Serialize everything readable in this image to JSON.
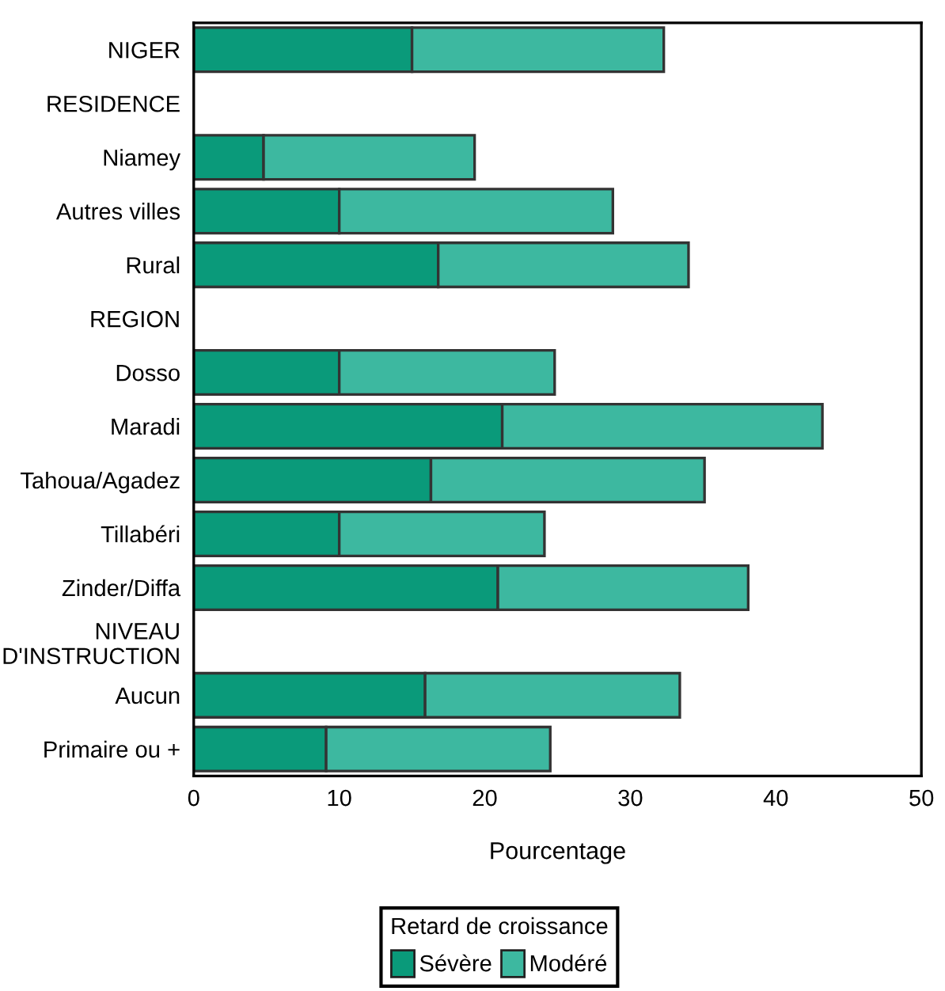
{
  "chart_data": {
    "type": "bar",
    "orientation": "horizontal",
    "stacked": true,
    "categories": [
      "NIGER",
      "RESIDENCE",
      "Niamey",
      "Autres villes",
      "Rural",
      "REGION",
      "Dosso",
      "Maradi",
      "Tahoua/Agadez",
      "Tillabéri",
      "Zinder/Diffa",
      "NIVEAU\nD'INSTRUCTION",
      "Aucun",
      "Primaire ou +"
    ],
    "series": [
      {
        "name": "Sévère",
        "color": "#0a9a7a",
        "values": [
          15.0,
          null,
          4.8,
          10.0,
          16.8,
          null,
          10.0,
          21.2,
          16.3,
          10.0,
          20.9,
          null,
          15.9,
          9.1
        ]
      },
      {
        "name": "Modéré",
        "color": "#3db8a0",
        "values": [
          17.3,
          null,
          14.5,
          18.8,
          17.2,
          null,
          14.8,
          22.0,
          18.8,
          14.1,
          17.2,
          null,
          17.5,
          15.4
        ]
      }
    ],
    "xlabel": "Pourcentage",
    "legend_title": "Retard de croissance",
    "legend": "bottom",
    "xlim": [
      0,
      50
    ],
    "xticks": [
      0,
      10,
      20,
      30,
      40,
      50
    ],
    "grid": false
  }
}
